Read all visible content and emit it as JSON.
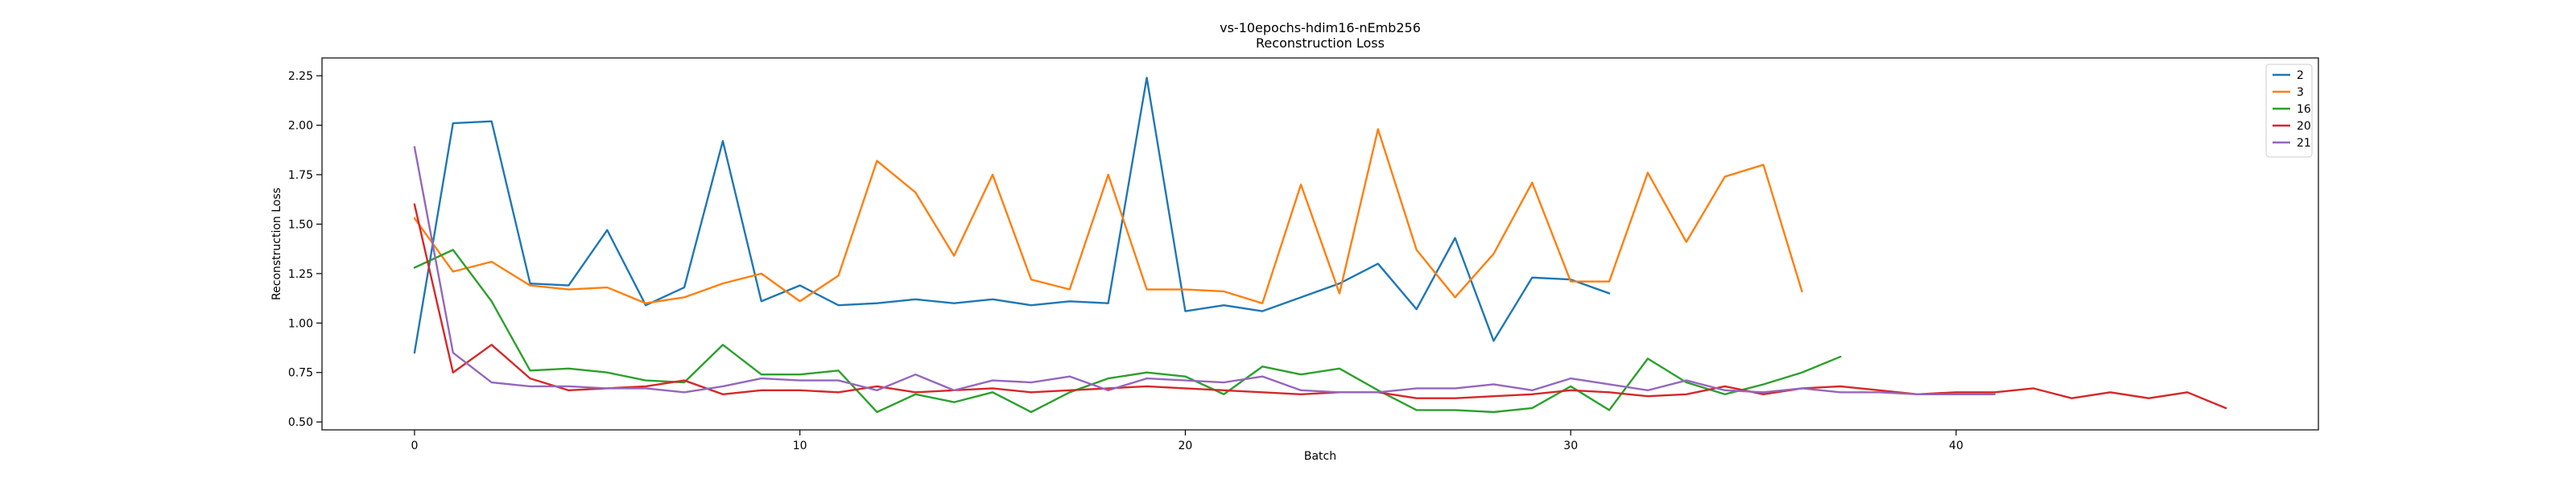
{
  "chart_data": {
    "type": "line",
    "title": "vs-10epochs-hdim16-nEmb256",
    "subtitle": "Reconstruction Loss",
    "xlabel": "Batch",
    "ylabel": "Reconstruction Loss",
    "xlim": [
      -2.4,
      49.4
    ],
    "ylim": [
      0.46,
      2.34
    ],
    "xticks": [
      0,
      10,
      20,
      30,
      40
    ],
    "yticks": [
      0.5,
      0.75,
      1.0,
      1.25,
      1.5,
      1.75,
      2.0,
      2.25
    ],
    "ytick_labels": [
      "0.50",
      "0.75",
      "1.00",
      "1.25",
      "1.50",
      "1.75",
      "2.00",
      "2.25"
    ],
    "grid": false,
    "legend_position": "top-right",
    "series": [
      {
        "name": "2",
        "color": "#1f77b4",
        "values": [
          0.85,
          2.01,
          2.02,
          1.2,
          1.19,
          1.47,
          1.09,
          1.18,
          1.92,
          1.11,
          1.19,
          1.09,
          1.1,
          1.12,
          1.1,
          1.12,
          1.09,
          1.11,
          1.1,
          2.24,
          1.06,
          1.09,
          1.06,
          1.13,
          1.2,
          1.3,
          1.07,
          1.43,
          0.91,
          1.23,
          1.22,
          1.15
        ]
      },
      {
        "name": "3",
        "color": "#ff7f0e",
        "values": [
          1.53,
          1.26,
          1.31,
          1.19,
          1.17,
          1.18,
          1.1,
          1.13,
          1.2,
          1.25,
          1.11,
          1.24,
          1.82,
          1.66,
          1.34,
          1.75,
          1.22,
          1.17,
          1.75,
          1.17,
          1.17,
          1.16,
          1.1,
          1.7,
          1.15,
          1.98,
          1.37,
          1.13,
          1.35,
          1.71,
          1.21,
          1.21,
          1.76,
          1.41,
          1.74,
          1.8,
          1.16
        ]
      },
      {
        "name": "16",
        "color": "#2ca02c",
        "values": [
          1.28,
          1.37,
          1.11,
          0.76,
          0.77,
          0.75,
          0.71,
          0.7,
          0.89,
          0.74,
          0.74,
          0.76,
          0.55,
          0.64,
          0.6,
          0.65,
          0.55,
          0.65,
          0.72,
          0.75,
          0.73,
          0.64,
          0.78,
          0.74,
          0.77,
          0.66,
          0.56,
          0.56,
          0.55,
          0.57,
          0.68,
          0.56,
          0.82,
          0.7,
          0.64,
          0.69,
          0.75,
          0.83
        ]
      },
      {
        "name": "20",
        "color": "#d62728",
        "values": [
          1.6,
          0.75,
          0.89,
          0.72,
          0.66,
          0.67,
          0.68,
          0.71,
          0.64,
          0.66,
          0.66,
          0.65,
          0.68,
          0.65,
          0.66,
          0.67,
          0.65,
          0.66,
          0.67,
          0.68,
          0.67,
          0.66,
          0.65,
          0.64,
          0.65,
          0.65,
          0.62,
          0.62,
          0.63,
          0.64,
          0.66,
          0.65,
          0.63,
          0.64,
          0.68,
          0.64,
          0.67,
          0.68,
          0.66,
          0.64,
          0.65,
          0.65,
          0.67,
          0.62,
          0.65,
          0.62,
          0.65,
          0.57
        ]
      },
      {
        "name": "21",
        "color": "#9467bd",
        "values": [
          1.89,
          0.85,
          0.7,
          0.68,
          0.68,
          0.67,
          0.67,
          0.65,
          0.68,
          0.72,
          0.71,
          0.71,
          0.66,
          0.74,
          0.66,
          0.71,
          0.7,
          0.73,
          0.66,
          0.72,
          0.71,
          0.7,
          0.73,
          0.66,
          0.65,
          0.65,
          0.67,
          0.67,
          0.69,
          0.66,
          0.72,
          0.69,
          0.66,
          0.71,
          0.66,
          0.65,
          0.67,
          0.65,
          0.65,
          0.64,
          0.64,
          0.64
        ]
      }
    ]
  }
}
